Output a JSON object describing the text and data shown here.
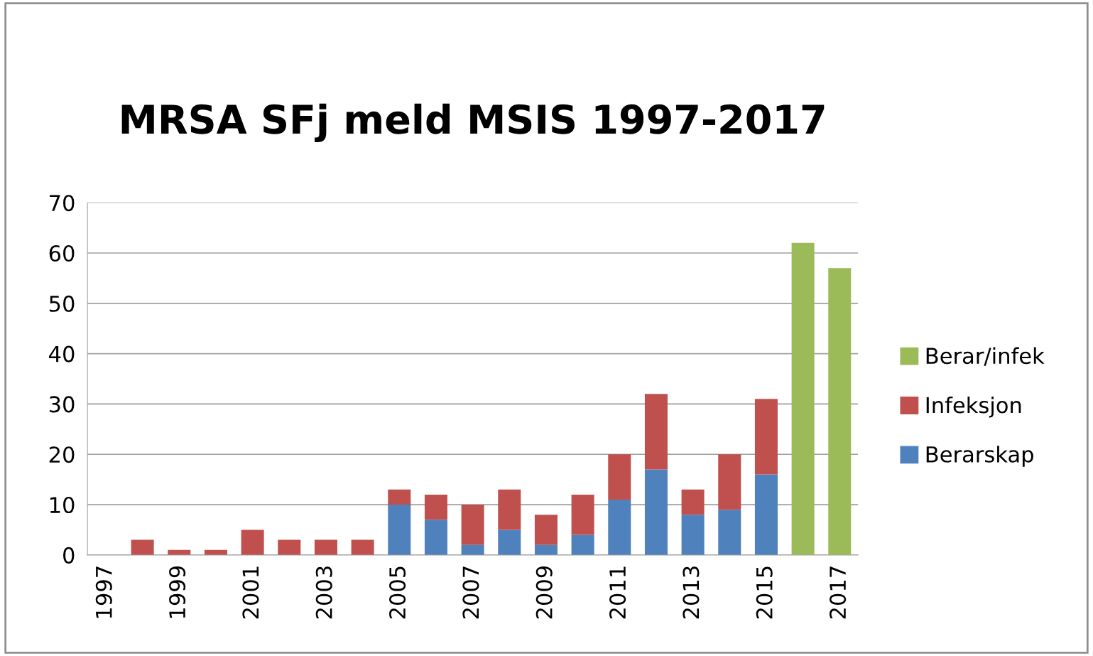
{
  "chart_data": {
    "type": "bar",
    "title": "MRSA SFj meld MSIS 1997-2017",
    "stacked": true,
    "categories": [
      "1997",
      null,
      "1999",
      null,
      "2001",
      null,
      "2003",
      null,
      "2005",
      null,
      "2007",
      null,
      "2009",
      null,
      "2011",
      null,
      "2013",
      null,
      "2015",
      null,
      "2017"
    ],
    "series": [
      {
        "name": "Berarskap",
        "color": "#4f81bd",
        "values": [
          0,
          0,
          0,
          0,
          0,
          0,
          0,
          0,
          10,
          7,
          2,
          5,
          2,
          4,
          11,
          17,
          8,
          9,
          16,
          0,
          0
        ]
      },
      {
        "name": "Infeksjon",
        "color": "#c0504d",
        "values": [
          0,
          3,
          1,
          1,
          5,
          3,
          3,
          3,
          3,
          5,
          8,
          8,
          6,
          8,
          9,
          15,
          5,
          11,
          15,
          0,
          0
        ]
      },
      {
        "name": "Berar/infek",
        "color": "#9bbb59",
        "values": [
          0,
          0,
          0,
          0,
          0,
          0,
          0,
          0,
          0,
          0,
          0,
          0,
          0,
          0,
          0,
          0,
          0,
          0,
          0,
          62,
          57
        ]
      }
    ],
    "ylim": [
      0,
      70
    ],
    "yticks": [
      0,
      10,
      20,
      30,
      40,
      50,
      60,
      70
    ],
    "grid": "y",
    "legend": "right"
  }
}
